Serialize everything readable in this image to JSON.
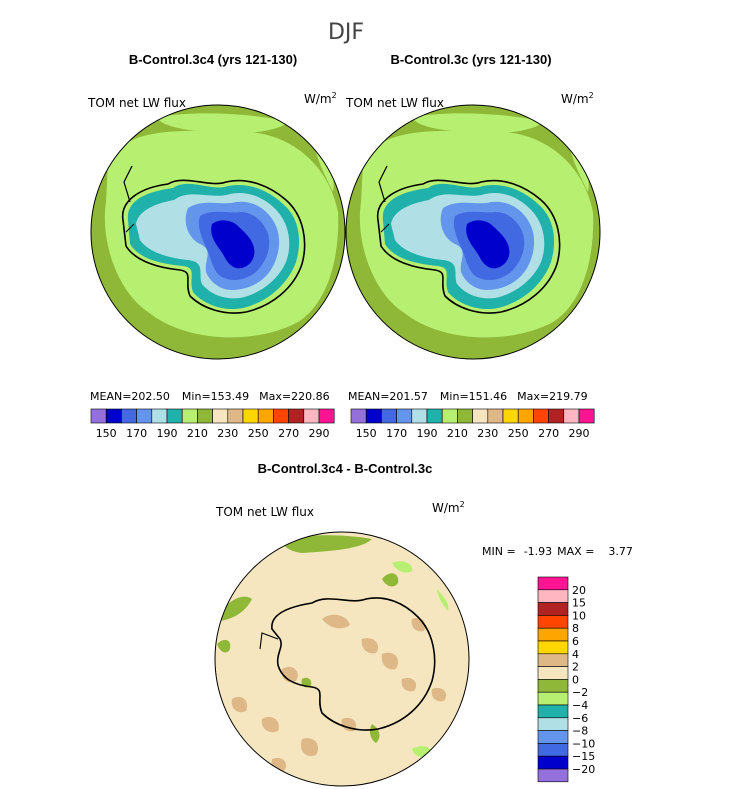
{
  "chart_data": [
    {
      "type": "heatmap",
      "figure_title": "DJF",
      "title": "B-Control.3c4 (yrs 121-130)",
      "variable": "TOM net LW flux",
      "units_base": "W/m",
      "units_exp": "2",
      "stats": {
        "mean_label": "MEAN=",
        "mean": "202.50",
        "min_label": "Min=",
        "min": "153.49",
        "max_label": "Max=",
        "max": "220.86"
      },
      "colorbar_ticks": [
        "150",
        "170",
        "190",
        "210",
        "230",
        "250",
        "270",
        "290"
      ]
    },
    {
      "type": "heatmap",
      "title": "B-Control.3c (yrs 121-130)",
      "variable": "TOM net LW flux",
      "units_base": "W/m",
      "units_exp": "2",
      "stats": {
        "mean_label": "MEAN=",
        "mean": "201.57",
        "min_label": "Min=",
        "min": "151.46",
        "max_label": "Max=",
        "max": "219.79"
      },
      "colorbar_ticks": [
        "150",
        "170",
        "190",
        "210",
        "230",
        "250",
        "270",
        "290"
      ]
    },
    {
      "type": "heatmap",
      "title": "B-Control.3c4 - B-Control.3c",
      "variable": "TOM net LW flux",
      "units_base": "W/m",
      "units_exp": "2",
      "stats": {
        "min_label": "MIN =",
        "min": "-1.93",
        "max_label": "MAX =",
        "max": "3.77"
      },
      "colorbar_ticks": [
        "20",
        "15",
        "10",
        "8",
        "6",
        "4",
        "2",
        "0",
        "−2",
        "−4",
        "−6",
        "−8",
        "−10",
        "−15",
        "−20"
      ]
    }
  ],
  "colors": {
    "abs_levels": [
      "#9370db",
      "#0000cd",
      "#4169e1",
      "#6495ed",
      "#b0e0e6",
      "#20b2aa",
      "#b7ef70",
      "#90b838",
      "#f5e6c0",
      "#deb887",
      "#ffd700",
      "#ffa500",
      "#ff4500",
      "#b22222",
      "#ffb6c1",
      "#ff1493"
    ],
    "diff_levels": [
      "#ff1493",
      "#ffb6c1",
      "#b22222",
      "#ff4500",
      "#ffa500",
      "#ffd700",
      "#deb887",
      "#f5e6c0",
      "#90b838",
      "#b7ef70",
      "#20b2aa",
      "#b0e0e6",
      "#6495ed",
      "#4169e1",
      "#0000cd",
      "#9370db"
    ],
    "coast": "#000000"
  }
}
